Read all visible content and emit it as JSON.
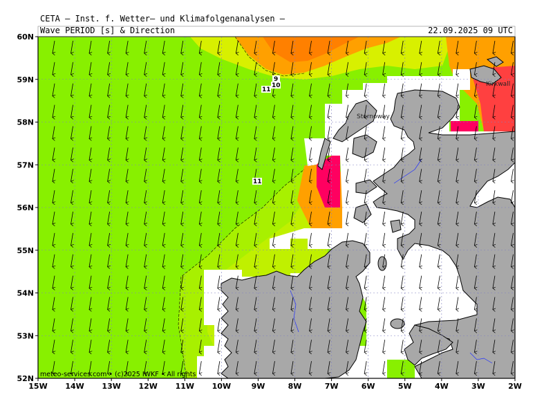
{
  "header": {
    "org_title": "CETA – Inst. f. Wetter– und Klimafolgenanalysen –",
    "parameter": "Wave PERIOD [s] & Direction",
    "valid_time": "22.09.2025 09 UTC"
  },
  "axes": {
    "lon_labels": [
      "15W",
      "14W",
      "13W",
      "12W",
      "11W",
      "10W",
      "9W",
      "8W",
      "7W",
      "6W",
      "5W",
      "4W",
      "3W",
      "2W"
    ],
    "lat_labels": [
      "60N",
      "59N",
      "58N",
      "57N",
      "56N",
      "55N",
      "54N",
      "53N",
      "52N"
    ]
  },
  "contour_labels": [
    "9",
    "10",
    "11",
    "11"
  ],
  "place_labels": [
    "Stornoway",
    "Kirkwall"
  ],
  "credit": "meteo-services.com • (c)2025 IWKF • All rights",
  "colors": {
    "sea_base": "#88f000",
    "sea_light": "#b8f000",
    "sea_yellow": "#d8f000",
    "orange": "#ffa000",
    "orange_dark": "#ff8000",
    "red": "#ff4040",
    "magenta": "#ff0060",
    "land": "#a8a8a8",
    "nodata": "#ffffff"
  },
  "wave_direction": "south"
}
